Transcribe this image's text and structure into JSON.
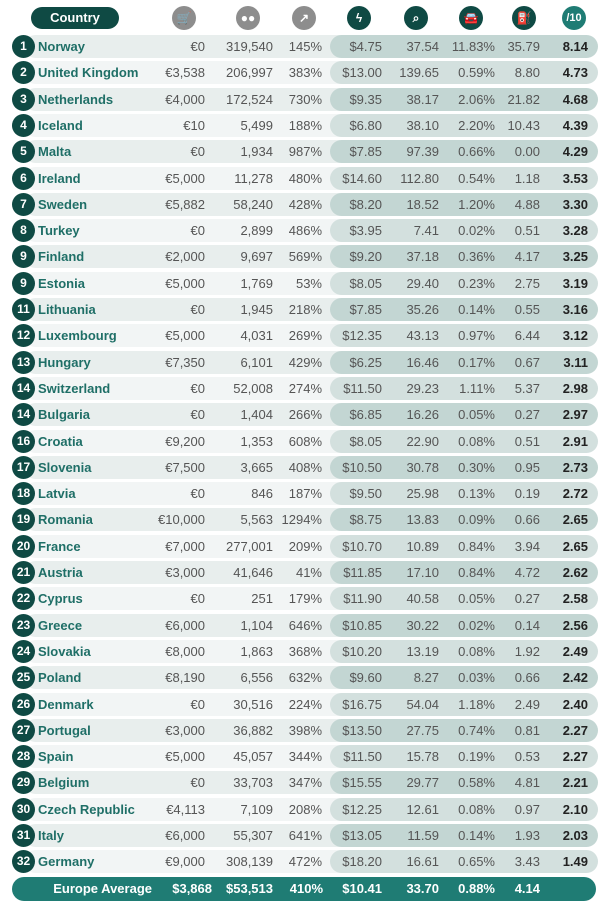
{
  "header": {
    "country": "Country",
    "score": "/10"
  },
  "header_icons": [
    "shopping-cart-icon",
    "people-icon",
    "growth-chart-icon",
    "lightning-icon",
    "search-icon",
    "car-icon",
    "charging-station-icon"
  ],
  "colors": {
    "dark": "#0f4a44",
    "teal": "#1f7c74",
    "gray": "#8d8d8d"
  },
  "chart_data": {
    "type": "table",
    "columns": [
      "Rank",
      "Country",
      "Incentive",
      "EVs",
      "Growth",
      "Charge Cost",
      "Searches",
      "EV Share",
      "Chargers",
      "Score /10"
    ],
    "rows": [
      [
        "1",
        "Norway",
        "€0",
        "319,540",
        "145%",
        "$4.75",
        "37.54",
        "11.83%",
        "35.79",
        "8.14"
      ],
      [
        "2",
        "United Kingdom",
        "€3,538",
        "206,997",
        "383%",
        "$13.00",
        "139.65",
        "0.59%",
        "8.80",
        "4.73"
      ],
      [
        "3",
        "Netherlands",
        "€4,000",
        "172,524",
        "730%",
        "$9.35",
        "38.17",
        "2.06%",
        "21.82",
        "4.68"
      ],
      [
        "4",
        "Iceland",
        "€10",
        "5,499",
        "188%",
        "$6.80",
        "38.10",
        "2.20%",
        "10.43",
        "4.39"
      ],
      [
        "5",
        "Malta",
        "€0",
        "1,934",
        "987%",
        "$7.85",
        "97.39",
        "0.66%",
        "0.00",
        "4.29"
      ],
      [
        "6",
        "Ireland",
        "€5,000",
        "11,278",
        "480%",
        "$14.60",
        "112.80",
        "0.54%",
        "1.18",
        "3.53"
      ],
      [
        "7",
        "Sweden",
        "€5,882",
        "58,240",
        "428%",
        "$8.20",
        "18.52",
        "1.20%",
        "4.88",
        "3.30"
      ],
      [
        "8",
        "Turkey",
        "€0",
        "2,899",
        "486%",
        "$3.95",
        "7.41",
        "0.02%",
        "0.51",
        "3.28"
      ],
      [
        "9",
        "Finland",
        "€2,000",
        "9,697",
        "569%",
        "$9.20",
        "37.18",
        "0.36%",
        "4.17",
        "3.25"
      ],
      [
        "9",
        "Estonia",
        "€5,000",
        "1,769",
        "53%",
        "$8.05",
        "29.40",
        "0.23%",
        "2.75",
        "3.19"
      ],
      [
        "11",
        "Lithuania",
        "€0",
        "1,945",
        "218%",
        "$7.85",
        "35.26",
        "0.14%",
        "0.55",
        "3.16"
      ],
      [
        "12",
        "Luxembourg",
        "€5,000",
        "4,031",
        "269%",
        "$12.35",
        "43.13",
        "0.97%",
        "6.44",
        "3.12"
      ],
      [
        "13",
        "Hungary",
        "€7,350",
        "6,101",
        "429%",
        "$6.25",
        "16.46",
        "0.17%",
        "0.67",
        "3.11"
      ],
      [
        "14",
        "Switzerland",
        "€0",
        "52,008",
        "274%",
        "$11.50",
        "29.23",
        "1.11%",
        "5.37",
        "2.98"
      ],
      [
        "14",
        "Bulgaria",
        "€0",
        "1,404",
        "266%",
        "$6.85",
        "16.26",
        "0.05%",
        "0.27",
        "2.97"
      ],
      [
        "16",
        "Croatia",
        "€9,200",
        "1,353",
        "608%",
        "$8.05",
        "22.90",
        "0.08%",
        "0.51",
        "2.91"
      ],
      [
        "17",
        "Slovenia",
        "€7,500",
        "3,665",
        "408%",
        "$10.50",
        "30.78",
        "0.30%",
        "0.95",
        "2.73"
      ],
      [
        "18",
        "Latvia",
        "€0",
        "846",
        "187%",
        "$9.50",
        "25.98",
        "0.13%",
        "0.19",
        "2.72"
      ],
      [
        "19",
        "Romania",
        "€10,000",
        "5,563",
        "1294%",
        "$8.75",
        "13.83",
        "0.09%",
        "0.66",
        "2.65"
      ],
      [
        "20",
        "France",
        "€7,000",
        "277,001",
        "209%",
        "$10.70",
        "10.89",
        "0.84%",
        "3.94",
        "2.65"
      ],
      [
        "21",
        "Austria",
        "€3,000",
        "41,646",
        "41%",
        "$11.85",
        "17.10",
        "0.84%",
        "4.72",
        "2.62"
      ],
      [
        "22",
        "Cyprus",
        "€0",
        "251",
        "179%",
        "$11.90",
        "40.58",
        "0.05%",
        "0.27",
        "2.58"
      ],
      [
        "23",
        "Greece",
        "€6,000",
        "1,104",
        "646%",
        "$10.85",
        "30.22",
        "0.02%",
        "0.14",
        "2.56"
      ],
      [
        "24",
        "Slovakia",
        "€8,000",
        "1,863",
        "368%",
        "$10.20",
        "13.19",
        "0.08%",
        "1.92",
        "2.49"
      ],
      [
        "25",
        "Poland",
        "€8,190",
        "6,556",
        "632%",
        "$9.60",
        "8.27",
        "0.03%",
        "0.66",
        "2.42"
      ],
      [
        "26",
        "Denmark",
        "€0",
        "30,516",
        "224%",
        "$16.75",
        "54.04",
        "1.18%",
        "2.49",
        "2.40"
      ],
      [
        "27",
        "Portugal",
        "€3,000",
        "36,882",
        "398%",
        "$13.50",
        "27.75",
        "0.74%",
        "0.81",
        "2.27"
      ],
      [
        "28",
        "Spain",
        "€5,000",
        "45,057",
        "344%",
        "$11.50",
        "15.78",
        "0.19%",
        "0.53",
        "2.27"
      ],
      [
        "29",
        "Belgium",
        "€0",
        "33,703",
        "347%",
        "$15.55",
        "29.77",
        "0.58%",
        "4.81",
        "2.21"
      ],
      [
        "30",
        "Czech Republic",
        "€4,113",
        "7,109",
        "208%",
        "$12.25",
        "12.61",
        "0.08%",
        "0.97",
        "2.10"
      ],
      [
        "31",
        "Italy",
        "€6,000",
        "55,307",
        "641%",
        "$13.05",
        "11.59",
        "0.14%",
        "1.93",
        "2.03"
      ],
      [
        "32",
        "Germany",
        "€9,000",
        "308,139",
        "472%",
        "$18.20",
        "16.61",
        "0.65%",
        "3.43",
        "1.49"
      ]
    ],
    "footer": [
      "Europe Average",
      "$3,868",
      "$53,513",
      "410%",
      "$10.41",
      "33.70",
      "0.88%",
      "4.14"
    ]
  }
}
